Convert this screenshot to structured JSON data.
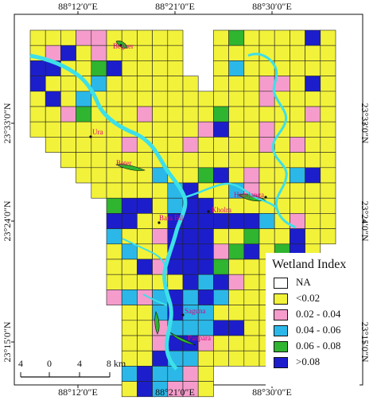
{
  "coordinates": {
    "top": [
      "88°12′0″E",
      "88°21′0″E",
      "88°30′0″E"
    ],
    "bottom": [
      "88°12′0″E",
      "88°21′0″E",
      "88°30′0″E"
    ],
    "left": [
      "23°33′0″N",
      "23°24′0″N",
      "23°15′0″N"
    ],
    "right": [
      "23°33′0″N",
      "23°24′0″N",
      "23°15′0″N"
    ]
  },
  "places": {
    "begher": "Begher",
    "ura": "Ura",
    "beter": "Beter",
    "hansjanga": "Hansjanga",
    "bara_bil": "Bara Bil",
    "kholra": "Kholra",
    "saguna": "Saguna",
    "panpara": "Panpara"
  },
  "legend": {
    "title": "Wetland Index",
    "items": [
      {
        "label": "NA",
        "color": "#ffffff"
      },
      {
        "label": "<0.02",
        "color": "#f2f23a"
      },
      {
        "label": "0.02 - 0.04",
        "color": "#f59ccc"
      },
      {
        "label": "0.04 - 0.06",
        "color": "#2bb8e8"
      },
      {
        "label": "0.06 - 0.08",
        "color": "#2fb52f"
      },
      {
        "label": ">0.08",
        "color": "#1c1ecc"
      }
    ]
  },
  "scale": {
    "ticks": [
      "4",
      "0",
      "4",
      "8 km"
    ]
  },
  "colors": {
    "river": "#3de0e8",
    "grid_line": "#222222",
    "wetland_polygon": "#2fb52f"
  }
}
